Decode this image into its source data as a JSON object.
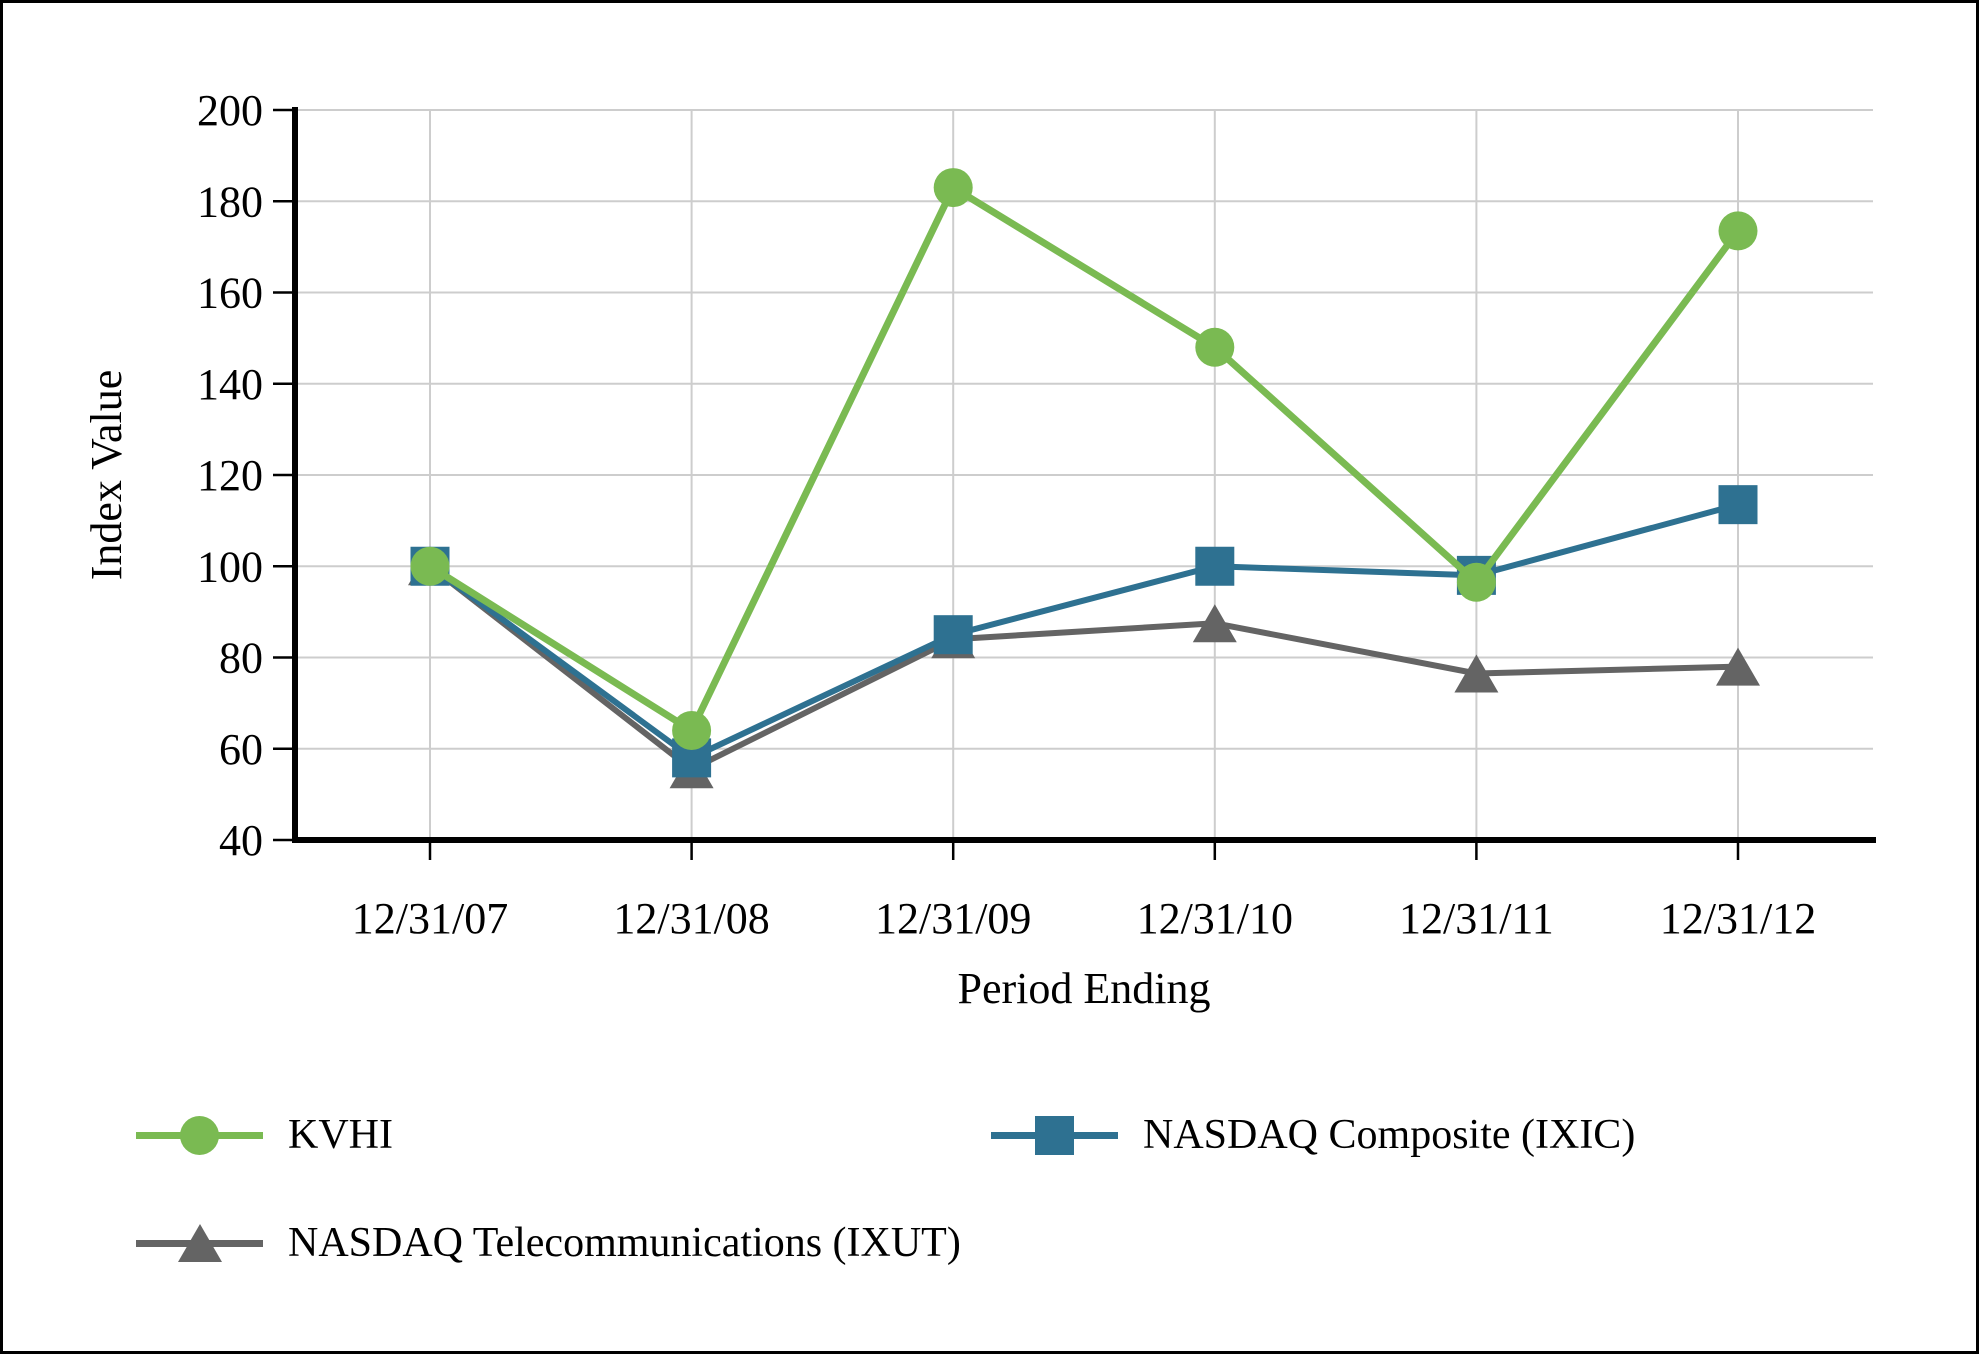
{
  "chart_data": {
    "type": "line",
    "title": "",
    "xlabel": "Period Ending",
    "ylabel": "Index Value",
    "categories": [
      "12/31/07",
      "12/31/08",
      "12/31/09",
      "12/31/10",
      "12/31/11",
      "12/31/12"
    ],
    "ylim": [
      40,
      200
    ],
    "y_ticks": [
      40,
      60,
      80,
      100,
      120,
      140,
      160,
      180,
      200
    ],
    "grid": true,
    "legend_position": "below",
    "grid_color": "#cdcdcd",
    "axis_color": "#000000",
    "series": [
      {
        "name": "KVHI",
        "marker": "circle",
        "color": "#7ABA52",
        "line_width": 7,
        "values": [
          100,
          64,
          183,
          148,
          96.5,
          173.5
        ]
      },
      {
        "name": "NASDAQ Composite (IXIC)",
        "marker": "square",
        "color": "#2E7191",
        "line_width": 6,
        "values": [
          100,
          58,
          85,
          100,
          98,
          113.5
        ]
      },
      {
        "name": "NASDAQ Telecommunications (IXUT)",
        "marker": "triangle",
        "color": "#646464",
        "line_width": 6,
        "values": [
          100,
          55.5,
          84,
          87.5,
          76.5,
          78
        ]
      }
    ]
  }
}
